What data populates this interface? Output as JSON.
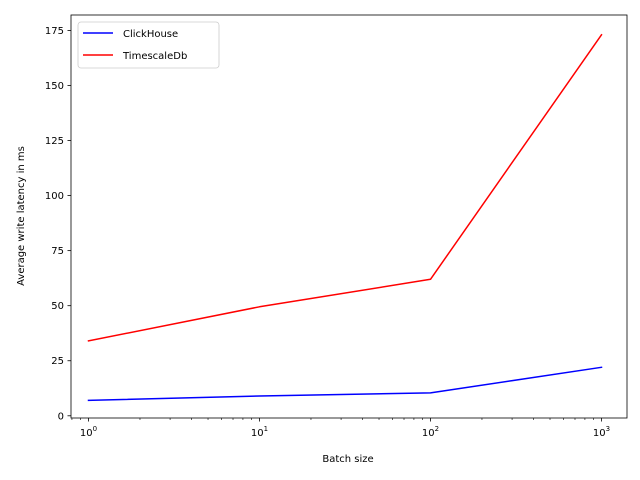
{
  "chart_data": {
    "type": "line",
    "title": "",
    "xlabel": "Batch size",
    "ylabel": "Average write latency in ms",
    "xscale": "log",
    "x": [
      1,
      10,
      100,
      1000
    ],
    "xticks": [
      {
        "base": "10",
        "exp": "0"
      },
      {
        "base": "10",
        "exp": "1"
      },
      {
        "base": "10",
        "exp": "2"
      },
      {
        "base": "10",
        "exp": "3"
      }
    ],
    "yticks": [
      "0",
      "25",
      "50",
      "75",
      "100",
      "125",
      "150",
      "175"
    ],
    "ylim": [
      -1,
      182
    ],
    "xlim": [
      0.79,
      1410
    ],
    "grid": false,
    "legend_position": "top-left",
    "series": [
      {
        "name": "ClickHouse",
        "color": "#0000ff",
        "values": [
          7,
          9,
          10.4,
          22
        ]
      },
      {
        "name": "TimescaleDb",
        "color": "#ff0000",
        "values": [
          34,
          49.5,
          62,
          173
        ]
      }
    ]
  }
}
